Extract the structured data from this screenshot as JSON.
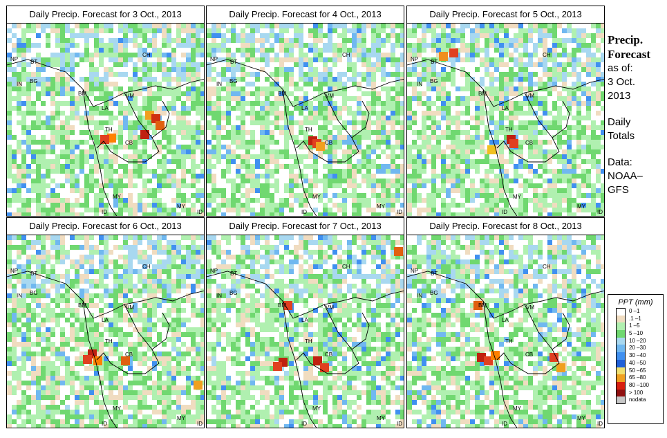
{
  "panels": [
    {
      "title": "Daily Precip. Forecast for  3 Oct., 2013",
      "hot": [
        [
          215,
          165,
          "#f0a020"
        ],
        [
          224,
          170,
          "#d03010"
        ],
        [
          230,
          180,
          "#e06010"
        ],
        [
          208,
          193,
          "#c02010"
        ],
        [
          160,
          198,
          "#ff8000"
        ],
        [
          150,
          200,
          "#e04020"
        ]
      ]
    },
    {
      "title": "Daily Precip. Forecast for  4 Oct., 2013",
      "hot": [
        [
          12,
          80,
          "#f05010"
        ],
        [
          18,
          86,
          "#ff8000"
        ],
        [
          105,
          82,
          "#e07020"
        ],
        [
          451,
          202,
          "#c02010"
        ],
        [
          457,
          206,
          "#e04020"
        ],
        [
          462,
          210,
          "#f0a020"
        ]
      ]
    },
    {
      "title": "Daily Precip. Forecast for  5 Oct., 2013",
      "hot": [
        [
          655,
          75,
          "#e04020"
        ],
        [
          640,
          80,
          "#f09020"
        ],
        [
          738,
          200,
          "#c02010"
        ],
        [
          742,
          206,
          "#e04020"
        ],
        [
          710,
          215,
          "#f0c020"
        ]
      ]
    },
    {
      "title": "Daily Precip. Forecast for  6 Oct., 2013",
      "hot": [
        [
          132,
          510,
          "#c02010"
        ],
        [
          125,
          518,
          "#e04020"
        ],
        [
          140,
          520,
          "#ff8000"
        ],
        [
          180,
          520,
          "#e06010"
        ],
        [
          285,
          555,
          "#f0a020"
        ]
      ]
    },
    {
      "title": "Daily Precip. Forecast for  7 Oct., 2013",
      "hot": [
        [
          408,
          522,
          "#c02010"
        ],
        [
          400,
          528,
          "#e04020"
        ],
        [
          458,
          520,
          "#c02010"
        ],
        [
          468,
          530,
          "#e04020"
        ],
        [
          575,
          362,
          "#e06010"
        ],
        [
          415,
          440,
          "#e04020"
        ]
      ]
    },
    {
      "title": "Daily Precip. Forecast for  8 Oct., 2013",
      "hot": [
        [
          695,
          515,
          "#c02010"
        ],
        [
          705,
          520,
          "#e04020"
        ],
        [
          715,
          512,
          "#ff8000"
        ],
        [
          800,
          515,
          "#e04020"
        ],
        [
          690,
          440,
          "#e06010"
        ],
        [
          810,
          530,
          "#f0a020"
        ]
      ]
    }
  ],
  "map_labels": [
    "NP",
    "BT",
    "IN",
    "BG",
    "BM",
    "CH",
    "VM",
    "LA",
    "TH",
    "CB",
    "MY",
    "ID",
    "MY",
    "ID"
  ],
  "sidebar": {
    "title_line1": "Precip.",
    "title_line2": "Forecast",
    "asof": "as of:",
    "date_line1": "3 Oct.",
    "date_line2": "2013",
    "daily_line1": "Daily",
    "daily_line2": "Totals",
    "data_line1": "Data:",
    "data_line2": "NOAA–",
    "data_line3": "GFS"
  },
  "legend": {
    "title": "PPT (mm)",
    "items": [
      {
        "label": "0 –1",
        "color": "#ffffff"
      },
      {
        "label": ".1 –1",
        "color": "#f0dcc0"
      },
      {
        "label": "1 –5",
        "color": "#b0f0b0"
      },
      {
        "label": "5 –10",
        "color": "#70d870"
      },
      {
        "label": "10 –20",
        "color": "#a8d8f0"
      },
      {
        "label": "20 –30",
        "color": "#70b8f0"
      },
      {
        "label": "30 –40",
        "color": "#4090f0"
      },
      {
        "label": "40 –50",
        "color": "#2060d8"
      },
      {
        "label": "50 –65",
        "color": "#f0e070"
      },
      {
        "label": "65 –80",
        "color": "#f0a020"
      },
      {
        "label": "80 –100",
        "color": "#d82010"
      },
      {
        "label": "> 100",
        "color": "#901010"
      },
      {
        "label": "nodata",
        "color": "#c8c8c8"
      }
    ]
  }
}
